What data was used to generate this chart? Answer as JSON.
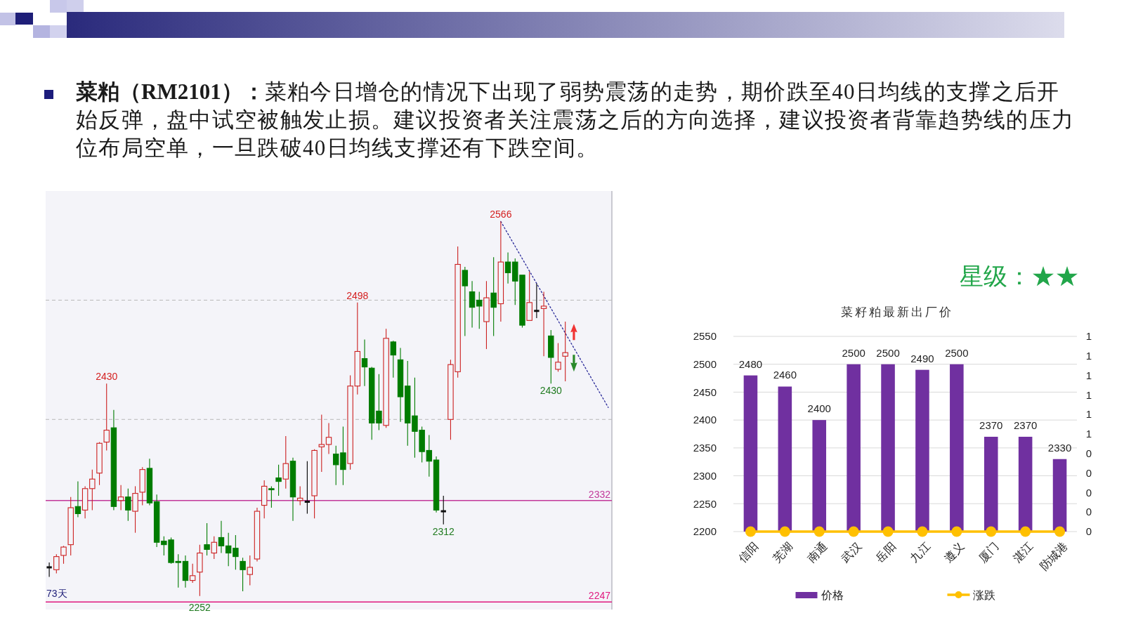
{
  "chart_data": [
    {
      "type": "candlestick",
      "title": "菜粕（RM2101）：",
      "subtitle": "菜粕今日增仓的情况下出现了弱势震荡的走势，期价跌至40日均线的支撑之后开始反弹，盘中试空被触发止损。建议投资者关注震荡之后的方向选择，建议投资者背靠趋势线的压力位布局空单，一旦跌破40日均线支撑还有下跌空间。",
      "categories": [
        null,
        null,
        null,
        null,
        null,
        null,
        null,
        null,
        null,
        null,
        null,
        null,
        null,
        null,
        null,
        null,
        null,
        null,
        null,
        null,
        null,
        null,
        null,
        null,
        null,
        null,
        null,
        null,
        null,
        null,
        null,
        null,
        null,
        null,
        null,
        null,
        null,
        null,
        null,
        null,
        null,
        null,
        null,
        null,
        null,
        null,
        null,
        null,
        null,
        null,
        null,
        null,
        null,
        null,
        null,
        null,
        null,
        null,
        null,
        null,
        null,
        null,
        null,
        null,
        null,
        null,
        null,
        null,
        null,
        null,
        null,
        null,
        null,
        null,
        null,
        null,
        null,
        null,
        null
      ],
      "ohlc": [
        [
          2276,
          2280,
          2268,
          2276
        ],
        [
          2274,
          2287,
          2271,
          2285
        ],
        [
          2286,
          2294,
          2279,
          2293
        ],
        [
          2295,
          2335,
          2286,
          2326
        ],
        [
          2327,
          2348,
          2318,
          2321
        ],
        [
          2324,
          2344,
          2317,
          2342
        ],
        [
          2342,
          2358,
          2324,
          2350
        ],
        [
          2355,
          2381,
          2345,
          2380
        ],
        [
          2381,
          2430,
          2374,
          2391
        ],
        [
          2393,
          2408,
          2324,
          2327
        ],
        [
          2332,
          2345,
          2324,
          2335
        ],
        [
          2335,
          2342,
          2315,
          2324
        ],
        [
          2323,
          2344,
          2305,
          2338
        ],
        [
          2339,
          2360,
          2328,
          2358
        ],
        [
          2359,
          2367,
          2328,
          2330
        ],
        [
          2331,
          2337,
          2293,
          2297
        ],
        [
          2298,
          2302,
          2286,
          2295
        ],
        [
          2299,
          2301,
          2279,
          2280
        ],
        [
          2281,
          2287,
          2259,
          2280
        ],
        [
          2281,
          2286,
          2259,
          2265
        ],
        [
          2265,
          2279,
          2263,
          2269
        ],
        [
          2272,
          2295,
          2252,
          2288
        ],
        [
          2295,
          2313,
          2286,
          2291
        ],
        [
          2288,
          2302,
          2283,
          2297
        ],
        [
          2301,
          2315,
          2288,
          2294
        ],
        [
          2294,
          2305,
          2277,
          2288
        ],
        [
          2292,
          2303,
          2274,
          2285
        ],
        [
          2281,
          2284,
          2256,
          2274
        ],
        [
          2270,
          2286,
          2261,
          2276
        ],
        [
          2283,
          2326,
          2281,
          2323
        ],
        [
          2328,
          2349,
          2317,
          2344
        ],
        [
          2342,
          2344,
          2326,
          2341
        ],
        [
          2351,
          2362,
          2336,
          2348
        ],
        [
          2350,
          2386,
          2342,
          2363
        ],
        [
          2365,
          2368,
          2315,
          2335
        ],
        [
          2332,
          2344,
          2328,
          2334
        ],
        [
          2331,
          2365,
          2321,
          2331
        ],
        [
          2336,
          2375,
          2317,
          2374
        ],
        [
          2377,
          2404,
          2356,
          2379
        ],
        [
          2379,
          2397,
          2371,
          2385
        ],
        [
          2371,
          2378,
          2345,
          2362
        ],
        [
          2372,
          2394,
          2345,
          2358
        ],
        [
          2363,
          2437,
          2358,
          2428
        ],
        [
          2428,
          2498,
          2421,
          2457
        ],
        [
          2451,
          2467,
          2428,
          2444
        ],
        [
          2443,
          2444,
          2383,
          2397
        ],
        [
          2407,
          2438,
          2391,
          2397
        ],
        [
          2395,
          2476,
          2393,
          2468
        ],
        [
          2465,
          2466,
          2435,
          2454
        ],
        [
          2450,
          2460,
          2398,
          2419
        ],
        [
          2428,
          2449,
          2378,
          2397
        ],
        [
          2403,
          2435,
          2368,
          2390
        ],
        [
          2391,
          2394,
          2364,
          2373
        ],
        [
          2374,
          2387,
          2352,
          2365
        ],
        [
          2366,
          2369,
          2322,
          2324
        ],
        [
          2323,
          2336,
          2312,
          2323
        ],
        [
          2400,
          2450,
          2383,
          2446
        ],
        [
          2440,
          2545,
          2435,
          2530
        ],
        [
          2525,
          2528,
          2470,
          2512
        ],
        [
          2507,
          2516,
          2477,
          2494
        ],
        [
          2500,
          2507,
          2476,
          2495
        ],
        [
          2482,
          2516,
          2459,
          2502
        ],
        [
          2506,
          2536,
          2470,
          2494
        ],
        [
          2497,
          2566,
          2482,
          2532
        ],
        [
          2532,
          2540,
          2514,
          2523
        ],
        [
          2532,
          2535,
          2496,
          2516
        ],
        [
          2521,
          2521,
          2477,
          2479
        ],
        [
          2483,
          2524,
          2483,
          2498
        ],
        [
          2491,
          2514,
          2485,
          2491
        ],
        [
          2493,
          2507,
          2453,
          2495
        ],
        [
          2470,
          2475,
          2430,
          2452
        ],
        [
          2442,
          2464,
          2440,
          2448
        ],
        [
          2453,
          2482,
          2432,
          2456
        ],
        null,
        null,
        null,
        null,
        null,
        null
      ],
      "series": [
        {
          "type": "line",
          "color": "#2b2b9a",
          "line_style": "dotted",
          "values": [
            null,
            null,
            null,
            null,
            null,
            null,
            null,
            null,
            null,
            null,
            null,
            null,
            null,
            null,
            null,
            null,
            null,
            null,
            null,
            null,
            null,
            null,
            null,
            null,
            null,
            null,
            null,
            null,
            null,
            null,
            null,
            null,
            null,
            null,
            null,
            null,
            null,
            null,
            null,
            null,
            null,
            null,
            null,
            null,
            null,
            null,
            null,
            null,
            null,
            null,
            null,
            null,
            null,
            null,
            null,
            null,
            null,
            null,
            null,
            null,
            null,
            null,
            null,
            2566,
            null,
            null,
            null,
            null,
            null,
            null,
            null,
            null,
            null,
            null,
            null,
            null,
            null,
            null,
            2410
          ]
        }
      ],
      "ref_lines": [
        {
          "axis": "y",
          "value": 2332,
          "label": "2332",
          "color": "#c2389a"
        },
        {
          "axis": "y",
          "value": 2247,
          "label": "2247",
          "color": "#e0187f"
        },
        {
          "axis": "y",
          "value": 2400,
          "color": "#b8b8b8",
          "line_style": "dashed"
        },
        {
          "axis": "y",
          "value": 2500,
          "color": "#b8b8b8",
          "line_style": "dashed"
        }
      ],
      "annotations": [
        {
          "text": "2430",
          "y": 2430
        },
        {
          "text": "2498",
          "y": 2498
        },
        {
          "text": "2566",
          "y": 2566
        },
        {
          "text": "2312",
          "y": 2312
        },
        {
          "text": "2430",
          "y": 2430
        },
        {
          "text": "2252",
          "y": 2252
        },
        "73天"
      ]
    },
    {
      "type": "bar",
      "title": "菜籽粕最新出厂价",
      "categories": [
        "信阳",
        "芜湖",
        "南通",
        "武汉",
        "岳阳",
        "九江",
        "遵义",
        "厦门",
        "湛江",
        "防城港"
      ],
      "series": [
        {
          "name": "价格",
          "color": "#7030a0",
          "values": [
            2480,
            2460,
            2400,
            2500,
            2500,
            2490,
            2500,
            2370,
            2370,
            2330
          ],
          "value_labels": [
            "2480",
            "2460",
            "2400",
            "2500",
            "2500",
            "2490",
            "2500",
            "2370",
            "2370",
            "2330"
          ]
        },
        {
          "name": "涨跌",
          "type": "line",
          "axis": "y2",
          "color": "#ffc000",
          "values": [
            0,
            0,
            0,
            0,
            0,
            0,
            0,
            0,
            0,
            0
          ]
        }
      ],
      "ylim": [
        2200,
        2550
      ],
      "yticks": [
        2200,
        2250,
        2300,
        2350,
        2400,
        2450,
        2500,
        2550
      ],
      "y2lim": [
        0,
        1
      ],
      "y2ticks": [
        0,
        {
          "value": 0.1,
          "label": "0"
        },
        {
          "value": 0.2,
          "label": "0"
        },
        {
          "value": 0.3,
          "label": "0"
        },
        {
          "value": 0.4,
          "label": "0"
        },
        {
          "value": 0.5,
          "label": "1"
        },
        {
          "value": 0.6,
          "label": "1"
        },
        {
          "value": 0.7,
          "label": "1"
        },
        {
          "value": 0.8,
          "label": "1"
        },
        {
          "value": 0.9,
          "label": "1"
        },
        1
      ],
      "grid": "y",
      "legend": "bottom",
      "marker": "circle",
      "annotations": [
        "星级：★★"
      ]
    }
  ]
}
